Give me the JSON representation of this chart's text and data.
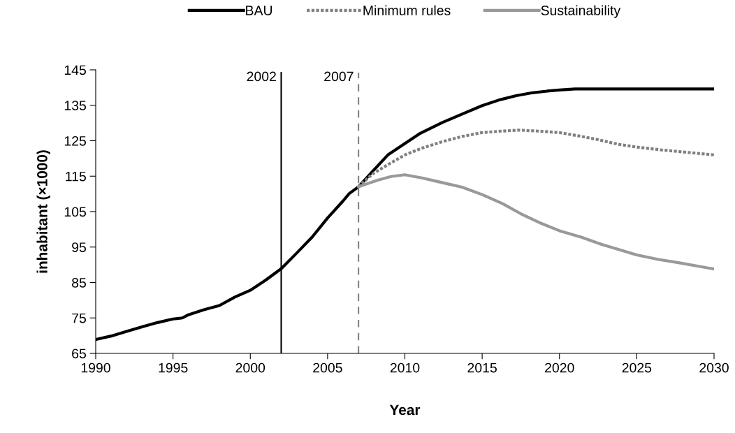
{
  "chart_data": {
    "type": "line",
    "xlabel": "Year",
    "ylabel": "inhabitant (×1000)",
    "xlim": [
      1990,
      2030
    ],
    "xticks": [
      1990,
      1995,
      2000,
      2005,
      2010,
      2015,
      2020,
      2025,
      2030
    ],
    "ylim": [
      65,
      145
    ],
    "yticks": [
      65,
      75,
      85,
      95,
      105,
      115,
      125,
      135,
      145
    ],
    "grid": false,
    "legend": "top",
    "marker": "none",
    "series": [
      {
        "name": "BAU",
        "color": "#000000",
        "line_style": "solid",
        "x": [
          1990,
          1991,
          1992,
          1993,
          1994,
          1995,
          1995.6,
          1996,
          1997,
          1998,
          1999,
          2000,
          2001,
          2002,
          2003,
          2004,
          2005,
          2006,
          2006.4,
          2007,
          2007.9,
          2008.9,
          2010,
          2011,
          2012.4,
          2013.7,
          2015,
          2016.1,
          2017.2,
          2018.2,
          2019.2,
          2020,
          2021,
          2030
        ],
        "values": [
          68.9,
          69.9,
          71.2,
          72.5,
          73.7,
          74.7,
          75.0,
          75.9,
          77.3,
          78.5,
          80.9,
          82.8,
          85.7,
          88.9,
          93.3,
          97.8,
          103.2,
          108.0,
          110.1,
          112.0,
          116.3,
          121.0,
          124.2,
          127.1,
          130.1,
          132.5,
          134.9,
          136.5,
          137.7,
          138.5,
          139.0,
          139.3,
          139.6,
          139.6
        ]
      },
      {
        "name": "Minimum rules",
        "color": "#808080",
        "line_style": "dotted",
        "x": [
          2007,
          2007.9,
          2009,
          2010,
          2011.1,
          2012.4,
          2013.7,
          2015,
          2016.2,
          2017.4,
          2018.7,
          2020,
          2021.2,
          2022.5,
          2023.8,
          2025,
          2026.6,
          2030
        ],
        "values": [
          112.0,
          115.6,
          118.5,
          121.0,
          122.9,
          124.7,
          126.2,
          127.3,
          127.7,
          128.0,
          127.7,
          127.3,
          126.4,
          125.3,
          124.0,
          123.2,
          122.4,
          121.0
        ]
      },
      {
        "name": "Sustainability",
        "color": "#999999",
        "line_style": "solid",
        "x": [
          2007,
          2008.2,
          2009.1,
          2010,
          2011.1,
          2012.4,
          2013.7,
          2015,
          2016.3,
          2017.5,
          2018.7,
          2020,
          2021.4,
          2022.7,
          2025,
          2026.4,
          2027.7,
          2030
        ],
        "values": [
          112.0,
          113.8,
          114.9,
          115.4,
          114.5,
          113.2,
          111.9,
          109.8,
          107.3,
          104.4,
          101.9,
          99.6,
          97.8,
          95.8,
          92.8,
          91.5,
          90.6,
          88.8
        ]
      }
    ],
    "ref_lines": [
      {
        "axis": "x",
        "value": 2002,
        "label": "2002",
        "color": "#000000",
        "line_style": "solid"
      },
      {
        "axis": "x",
        "value": 2007,
        "label": "2007",
        "color": "#808080",
        "line_style": "dashed"
      }
    ]
  }
}
